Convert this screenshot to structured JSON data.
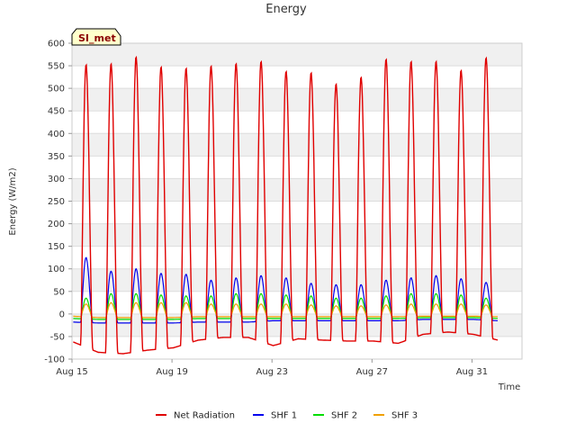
{
  "chart_data": {
    "type": "line",
    "title": "Energy",
    "xlabel": "Time",
    "ylabel": "Energy (W/m2)",
    "badge": "SI_met",
    "ylim": [
      -100,
      600
    ],
    "xlim": [
      "2023-08-15",
      "2023-09-02"
    ],
    "y_ticks": [
      -100,
      -50,
      0,
      50,
      100,
      150,
      200,
      250,
      300,
      350,
      400,
      450,
      500,
      550,
      600
    ],
    "x_ticks": [
      {
        "date": "2023-08-15",
        "label": "Aug 15"
      },
      {
        "date": "2023-08-19",
        "label": "Aug 19"
      },
      {
        "date": "2023-08-23",
        "label": "Aug 23"
      },
      {
        "date": "2023-08-27",
        "label": "Aug 27"
      },
      {
        "date": "2023-08-31",
        "label": "Aug 31"
      }
    ],
    "grid": true,
    "legend_position": "bottom",
    "days": [
      "2023-08-15",
      "2023-08-16",
      "2023-08-17",
      "2023-08-18",
      "2023-08-19",
      "2023-08-20",
      "2023-08-21",
      "2023-08-22",
      "2023-08-23",
      "2023-08-24",
      "2023-08-25",
      "2023-08-26",
      "2023-08-27",
      "2023-08-28",
      "2023-08-29",
      "2023-08-30",
      "2023-08-31",
      "2023-09-01"
    ],
    "series": [
      {
        "name": "Net Radiation",
        "color": "#e00000",
        "daily_peak": [
          553,
          555,
          570,
          548,
          545,
          550,
          555,
          560,
          538,
          535,
          510,
          525,
          565,
          560,
          560,
          540,
          568
        ],
        "night_value": [
          -62,
          -85,
          -88,
          -80,
          -75,
          -58,
          -52,
          -52,
          -70,
          -55,
          -58,
          -60,
          -60,
          -65,
          -45,
          -40,
          -45,
          -58
        ]
      },
      {
        "name": "SHF 1",
        "color": "#0000ee",
        "daily_peak": [
          125,
          95,
          100,
          90,
          88,
          75,
          80,
          85,
          80,
          68,
          65,
          65,
          75,
          80,
          85,
          78,
          70
        ],
        "night_value": [
          -18,
          -20,
          -20,
          -20,
          -20,
          -18,
          -18,
          -18,
          -15,
          -15,
          -15,
          -15,
          -15,
          -15,
          -12,
          -12,
          -12,
          -15
        ]
      },
      {
        "name": "SHF 2",
        "color": "#00dd00",
        "daily_peak": [
          35,
          45,
          45,
          42,
          40,
          40,
          45,
          45,
          42,
          40,
          35,
          35,
          40,
          45,
          45,
          42,
          35
        ],
        "night_value": [
          -10,
          -12,
          -12,
          -12,
          -12,
          -10,
          -10,
          -10,
          -10,
          -10,
          -10,
          -10,
          -10,
          -10,
          -8,
          -8,
          -8,
          -10
        ]
      },
      {
        "name": "SHF 3",
        "color": "#f0a000",
        "daily_peak": [
          22,
          25,
          25,
          25,
          25,
          22,
          22,
          22,
          22,
          20,
          18,
          18,
          20,
          22,
          22,
          22,
          20
        ],
        "night_value": [
          -5,
          -8,
          -8,
          -8,
          -8,
          -6,
          -6,
          -6,
          -6,
          -6,
          -6,
          -6,
          -6,
          -6,
          -5,
          -5,
          -5,
          -6
        ]
      }
    ]
  }
}
